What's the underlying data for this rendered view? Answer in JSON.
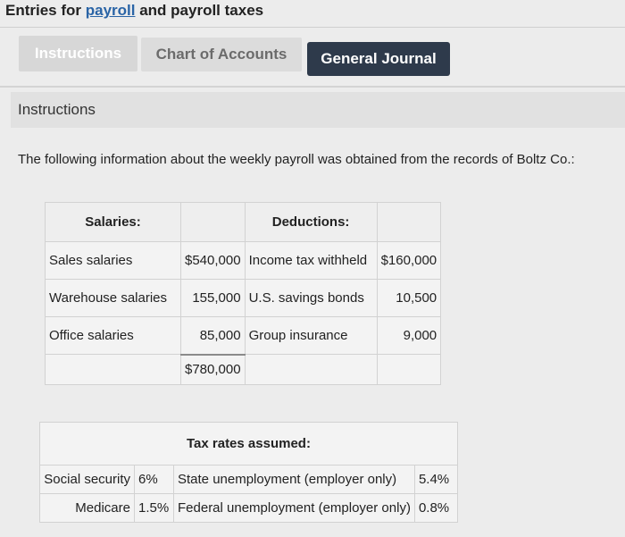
{
  "title": {
    "prefix": "Entries for ",
    "link": "payroll",
    "suffix": " and payroll taxes"
  },
  "tabs": {
    "instructions": "Instructions",
    "chart_of_accounts": "Chart of Accounts",
    "general_journal": "General Journal"
  },
  "section": {
    "title": "Instructions"
  },
  "intro": "The following information about the weekly payroll was obtained from the records of Boltz Co.:",
  "payroll_table": {
    "salaries_header": "Salaries:",
    "deductions_header": "Deductions:",
    "rows": [
      {
        "salary_label": "Sales salaries",
        "salary_amount": "$540,000",
        "deduction_label": "Income tax withheld",
        "deduction_amount": "$160,000"
      },
      {
        "salary_label": "Warehouse salaries",
        "salary_amount": "155,000",
        "deduction_label": "U.S. savings bonds",
        "deduction_amount": "10,500"
      },
      {
        "salary_label": "Office salaries",
        "salary_amount": "85,000",
        "deduction_label": "Group insurance",
        "deduction_amount": "9,000"
      }
    ],
    "salary_total": "$780,000"
  },
  "tax_rates": {
    "header": "Tax rates assumed:",
    "rows": [
      {
        "label": "Social security",
        "rate": "6%",
        "other_label": "State unemployment (employer only)",
        "other_rate": "5.4%"
      },
      {
        "label": "Medicare",
        "rate": "1.5%",
        "other_label": "Federal unemployment (employer only)",
        "other_rate": "0.8%"
      }
    ]
  },
  "colors": {
    "link": "#2a64a6",
    "tab_active_bg": "#2e3a4b",
    "background": "#ececec"
  }
}
